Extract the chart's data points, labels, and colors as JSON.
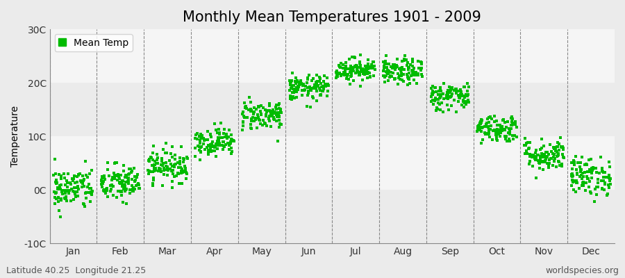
{
  "title": "Monthly Mean Temperatures 1901 - 2009",
  "ylabel": "Temperature",
  "ylim": [
    -10,
    30
  ],
  "yticks": [
    -10,
    0,
    10,
    20,
    30
  ],
  "ytick_labels": [
    "-10C",
    "0C",
    "10C",
    "20C",
    "30C"
  ],
  "months": [
    "Jan",
    "Feb",
    "Mar",
    "Apr",
    "May",
    "Jun",
    "Jul",
    "Aug",
    "Sep",
    "Oct",
    "Nov",
    "Dec"
  ],
  "month_means": [
    0.2,
    1.2,
    4.5,
    9.0,
    14.0,
    19.0,
    22.5,
    22.0,
    17.5,
    11.5,
    6.5,
    2.5
  ],
  "month_stds": [
    2.0,
    1.8,
    1.5,
    1.3,
    1.4,
    1.2,
    1.1,
    1.2,
    1.3,
    1.3,
    1.5,
    1.8
  ],
  "n_years": 109,
  "dot_color": "#00BB00",
  "dot_size": 5,
  "bg_light": "#EBEBEB",
  "bg_dark": "#DCDCDC",
  "bg_white": "#F5F5F5",
  "grid_color": "#888888",
  "title_fontsize": 15,
  "label_fontsize": 10,
  "tick_fontsize": 10,
  "legend_label": "Mean Temp",
  "footer_left": "Latitude 40.25  Longitude 21.25",
  "footer_right": "worldspecies.org",
  "footer_fontsize": 9,
  "seed": 42
}
